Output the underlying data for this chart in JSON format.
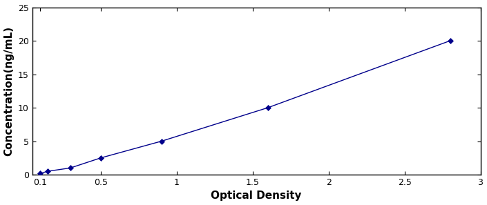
{
  "x_data": [
    0.1,
    0.15,
    0.3,
    0.5,
    0.9,
    1.6,
    2.8
  ],
  "y_data": [
    0.16,
    0.5,
    1.0,
    2.5,
    5.0,
    10.0,
    20.0
  ],
  "line_color": "#00008B",
  "marker_color": "#00008B",
  "marker_style": "D",
  "marker_size": 4,
  "line_width": 1.0,
  "xlabel": "Optical Density",
  "ylabel": "Concentration(ng/mL)",
  "xlim": [
    0.05,
    3.0
  ],
  "ylim": [
    0,
    25
  ],
  "xticks": [
    0.5,
    1,
    1.5,
    2,
    2.5,
    3
  ],
  "yticks": [
    0,
    5,
    10,
    15,
    20,
    25
  ],
  "tick_labelsize": 9,
  "axis_labelsize": 11,
  "background_color": "#ffffff",
  "border_color": "#000000",
  "xlabel_extra_ticks": [
    0.1
  ]
}
